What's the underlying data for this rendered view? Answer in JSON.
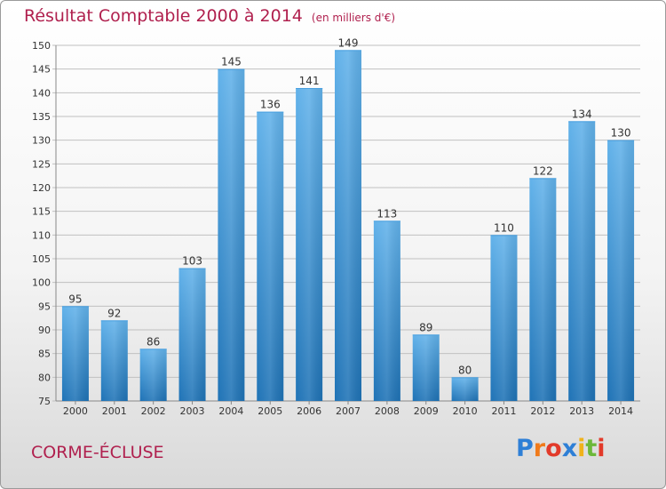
{
  "title": "Résultat Comptable 2000 à 2014",
  "subtitle": "(en milliers d'€)",
  "place": "CORME-ÉCLUSE",
  "logo": {
    "text": "Proxiti",
    "letters": [
      {
        "char": "P",
        "color": "#2e7fd6"
      },
      {
        "char": "r",
        "color": "#f07a1a"
      },
      {
        "char": "o",
        "color": "#e23a2a"
      },
      {
        "char": "x",
        "color": "#2e7fd6"
      },
      {
        "char": "i",
        "color": "#f0b21a"
      },
      {
        "char": "t",
        "color": "#6cb83a"
      },
      {
        "char": "i",
        "color": "#e23a2a"
      }
    ]
  },
  "colors": {
    "title": "#b0204e",
    "bar_light": "#62b2ea",
    "bar_dark": "#1f73b6",
    "grid": "#c0c0c0"
  },
  "chart_data": {
    "type": "bar",
    "categories": [
      "2000",
      "2001",
      "2002",
      "2003",
      "2004",
      "2005",
      "2006",
      "2007",
      "2008",
      "2009",
      "2010",
      "2011",
      "2012",
      "2013",
      "2014"
    ],
    "values": [
      95,
      92,
      86,
      103,
      145,
      136,
      141,
      149,
      113,
      89,
      80,
      110,
      122,
      134,
      130
    ],
    "ylim": [
      75,
      150
    ],
    "yticks": [
      75,
      80,
      85,
      90,
      95,
      100,
      105,
      110,
      115,
      120,
      125,
      130,
      135,
      140,
      145,
      150
    ],
    "grid": true
  }
}
